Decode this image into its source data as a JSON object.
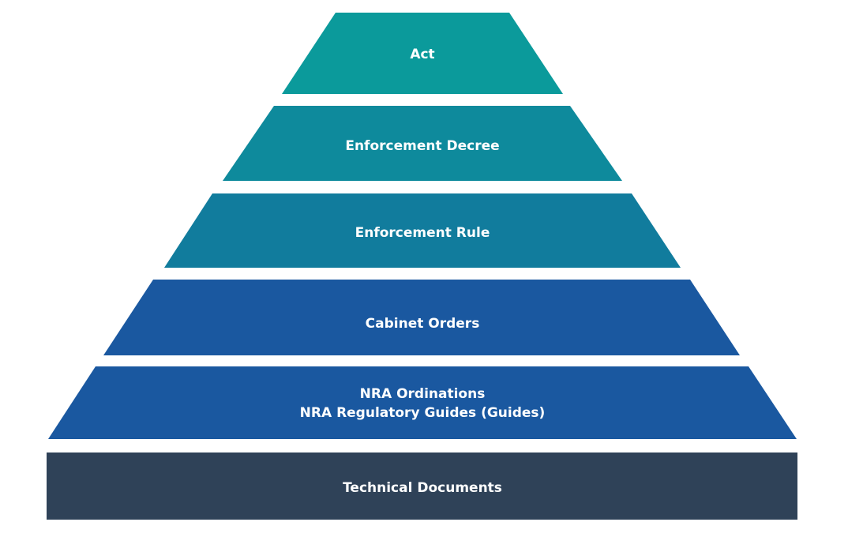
{
  "diagram": {
    "tiers": [
      {
        "lines": [
          "Act"
        ],
        "color": "#0b9a9b"
      },
      {
        "lines": [
          "Enforcement Decree"
        ],
        "color": "#0e8a9c"
      },
      {
        "lines": [
          "Enforcement Rule"
        ],
        "color": "#117c9d"
      },
      {
        "lines": [
          "Cabinet Orders"
        ],
        "color": "#1a58a0"
      },
      {
        "lines": [
          "NRA Ordinations",
          "NRA Regulatory Guides (Guides)"
        ],
        "color": "#1a58a0"
      },
      {
        "lines": [
          "Technical Documents"
        ],
        "color": "#2f4258"
      }
    ]
  }
}
